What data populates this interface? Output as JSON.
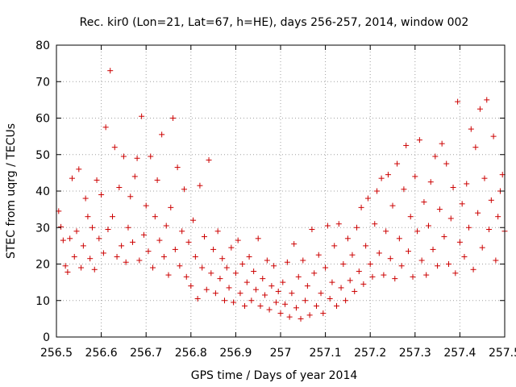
{
  "chart_data": {
    "type": "scatter",
    "title": "Rec. kir0 (Lon=21, Lat=67, h=HE), days 256-257, 2014, window 002",
    "xlabel": "GPS time / Days of year 2014",
    "ylabel": "STEC from uqrg / TECUs",
    "xlim": [
      256.5,
      257.5
    ],
    "ylim": [
      0,
      80
    ],
    "xticks": [
      "256.5",
      "256.6",
      "256.7",
      "256.8",
      "256.9",
      "257",
      "257.1",
      "257.2",
      "257.3",
      "257.4",
      "257.5"
    ],
    "yticks": [
      "0",
      "10",
      "20",
      "30",
      "40",
      "50",
      "60",
      "70",
      "80"
    ],
    "grid": true,
    "marker": "plus",
    "color": "#cc0000",
    "points": [
      [
        256.505,
        34.5
      ],
      [
        256.51,
        30.2
      ],
      [
        256.515,
        26.5
      ],
      [
        256.52,
        19.5
      ],
      [
        256.525,
        17.8
      ],
      [
        256.53,
        27.0
      ],
      [
        256.535,
        43.5
      ],
      [
        256.54,
        22.0
      ],
      [
        256.545,
        29.0
      ],
      [
        256.55,
        46.0
      ],
      [
        256.555,
        19.0
      ],
      [
        256.56,
        25.0
      ],
      [
        256.565,
        38.0
      ],
      [
        256.57,
        33.0
      ],
      [
        256.575,
        21.5
      ],
      [
        256.58,
        30.0
      ],
      [
        256.585,
        18.5
      ],
      [
        256.59,
        43.0
      ],
      [
        256.595,
        27.0
      ],
      [
        256.6,
        39.0
      ],
      [
        256.605,
        23.0
      ],
      [
        256.61,
        57.5
      ],
      [
        256.615,
        29.5
      ],
      [
        256.62,
        73.0
      ],
      [
        256.625,
        33.0
      ],
      [
        256.63,
        52.0
      ],
      [
        256.635,
        22.0
      ],
      [
        256.64,
        41.0
      ],
      [
        256.645,
        25.0
      ],
      [
        256.65,
        49.5
      ],
      [
        256.655,
        20.5
      ],
      [
        256.66,
        30.0
      ],
      [
        256.665,
        38.5
      ],
      [
        256.67,
        26.0
      ],
      [
        256.675,
        44.0
      ],
      [
        256.68,
        49.0
      ],
      [
        256.685,
        21.0
      ],
      [
        256.69,
        60.5
      ],
      [
        256.695,
        28.0
      ],
      [
        256.7,
        36.0
      ],
      [
        256.705,
        23.5
      ],
      [
        256.71,
        49.5
      ],
      [
        256.715,
        19.0
      ],
      [
        256.72,
        33.0
      ],
      [
        256.725,
        43.0
      ],
      [
        256.73,
        26.5
      ],
      [
        256.735,
        55.5
      ],
      [
        256.74,
        22.0
      ],
      [
        256.745,
        30.5
      ],
      [
        256.75,
        17.0
      ],
      [
        256.755,
        35.5
      ],
      [
        256.76,
        60.0
      ],
      [
        256.765,
        24.0
      ],
      [
        256.77,
        46.5
      ],
      [
        256.775,
        19.5
      ],
      [
        256.78,
        29.0
      ],
      [
        256.785,
        40.5
      ],
      [
        256.79,
        16.5
      ],
      [
        256.795,
        26.0
      ],
      [
        256.8,
        14.0
      ],
      [
        256.805,
        32.0
      ],
      [
        256.81,
        22.0
      ],
      [
        256.815,
        10.5
      ],
      [
        256.82,
        41.5
      ],
      [
        256.825,
        19.0
      ],
      [
        256.83,
        27.5
      ],
      [
        256.835,
        13.0
      ],
      [
        256.84,
        48.5
      ],
      [
        256.845,
        17.5
      ],
      [
        256.85,
        24.0
      ],
      [
        256.855,
        12.0
      ],
      [
        256.86,
        29.0
      ],
      [
        256.865,
        16.0
      ],
      [
        256.87,
        21.5
      ],
      [
        256.875,
        10.0
      ],
      [
        256.88,
        19.0
      ],
      [
        256.885,
        13.5
      ],
      [
        256.89,
        24.5
      ],
      [
        256.895,
        9.5
      ],
      [
        256.9,
        17.5
      ],
      [
        256.905,
        26.5
      ],
      [
        256.91,
        12.0
      ],
      [
        256.915,
        20.0
      ],
      [
        256.92,
        8.5
      ],
      [
        256.925,
        15.0
      ],
      [
        256.93,
        22.0
      ],
      [
        256.935,
        10.0
      ],
      [
        256.94,
        18.0
      ],
      [
        256.945,
        13.0
      ],
      [
        256.95,
        27.0
      ],
      [
        256.955,
        8.5
      ],
      [
        256.96,
        16.0
      ],
      [
        256.965,
        11.5
      ],
      [
        256.97,
        21.0
      ],
      [
        256.975,
        7.5
      ],
      [
        256.98,
        14.0
      ],
      [
        256.985,
        19.5
      ],
      [
        256.99,
        9.5
      ],
      [
        256.995,
        12.5
      ],
      [
        257.0,
        6.5
      ],
      [
        257.005,
        15.0
      ],
      [
        257.01,
        9.0
      ],
      [
        257.015,
        20.5
      ],
      [
        257.02,
        5.5
      ],
      [
        257.025,
        12.0
      ],
      [
        257.03,
        25.5
      ],
      [
        257.035,
        8.0
      ],
      [
        257.04,
        16.5
      ],
      [
        257.045,
        5.0
      ],
      [
        257.05,
        21.0
      ],
      [
        257.055,
        10.0
      ],
      [
        257.06,
        14.0
      ],
      [
        257.065,
        6.0
      ],
      [
        257.07,
        29.5
      ],
      [
        257.075,
        17.5
      ],
      [
        257.08,
        8.5
      ],
      [
        257.085,
        22.5
      ],
      [
        257.09,
        12.0
      ],
      [
        257.095,
        6.5
      ],
      [
        257.1,
        19.0
      ],
      [
        257.105,
        30.5
      ],
      [
        257.11,
        10.5
      ],
      [
        257.115,
        15.0
      ],
      [
        257.12,
        25.0
      ],
      [
        257.125,
        8.5
      ],
      [
        257.13,
        31.0
      ],
      [
        257.135,
        13.5
      ],
      [
        257.14,
        20.0
      ],
      [
        257.145,
        10.0
      ],
      [
        257.15,
        27.0
      ],
      [
        257.155,
        15.5
      ],
      [
        257.16,
        22.5
      ],
      [
        257.165,
        12.5
      ],
      [
        257.17,
        30.0
      ],
      [
        257.175,
        18.0
      ],
      [
        257.18,
        35.5
      ],
      [
        257.185,
        14.5
      ],
      [
        257.19,
        25.0
      ],
      [
        257.195,
        38.0
      ],
      [
        257.2,
        20.0
      ],
      [
        257.205,
        16.5
      ],
      [
        257.21,
        31.0
      ],
      [
        257.215,
        40.0
      ],
      [
        257.22,
        23.0
      ],
      [
        257.225,
        43.5
      ],
      [
        257.23,
        17.0
      ],
      [
        257.235,
        29.0
      ],
      [
        257.24,
        44.5
      ],
      [
        257.245,
        21.5
      ],
      [
        257.25,
        36.0
      ],
      [
        257.255,
        16.0
      ],
      [
        257.26,
        47.5
      ],
      [
        257.265,
        27.0
      ],
      [
        257.27,
        19.5
      ],
      [
        257.275,
        40.5
      ],
      [
        257.28,
        52.5
      ],
      [
        257.285,
        23.5
      ],
      [
        257.29,
        33.0
      ],
      [
        257.295,
        16.5
      ],
      [
        257.3,
        44.0
      ],
      [
        257.305,
        29.0
      ],
      [
        257.31,
        54.0
      ],
      [
        257.315,
        21.0
      ],
      [
        257.32,
        37.0
      ],
      [
        257.325,
        17.0
      ],
      [
        257.33,
        30.5
      ],
      [
        257.335,
        42.5
      ],
      [
        257.34,
        24.0
      ],
      [
        257.345,
        49.5
      ],
      [
        257.35,
        19.5
      ],
      [
        257.355,
        35.0
      ],
      [
        257.36,
        53.0
      ],
      [
        257.365,
        27.5
      ],
      [
        257.37,
        47.5
      ],
      [
        257.375,
        20.0
      ],
      [
        257.38,
        32.5
      ],
      [
        257.385,
        41.0
      ],
      [
        257.39,
        17.5
      ],
      [
        257.395,
        64.5
      ],
      [
        257.4,
        26.0
      ],
      [
        257.405,
        36.5
      ],
      [
        257.41,
        22.0
      ],
      [
        257.415,
        42.0
      ],
      [
        257.42,
        30.0
      ],
      [
        257.425,
        57.0
      ],
      [
        257.43,
        18.5
      ],
      [
        257.435,
        52.0
      ],
      [
        257.44,
        34.0
      ],
      [
        257.445,
        62.5
      ],
      [
        257.45,
        24.5
      ],
      [
        257.455,
        43.5
      ],
      [
        257.46,
        65.0
      ],
      [
        257.465,
        29.5
      ],
      [
        257.47,
        37.5
      ],
      [
        257.475,
        55.0
      ],
      [
        257.48,
        21.0
      ],
      [
        257.485,
        33.0
      ],
      [
        257.49,
        40.0
      ],
      [
        257.495,
        44.5
      ],
      [
        257.5,
        29.0
      ]
    ]
  }
}
